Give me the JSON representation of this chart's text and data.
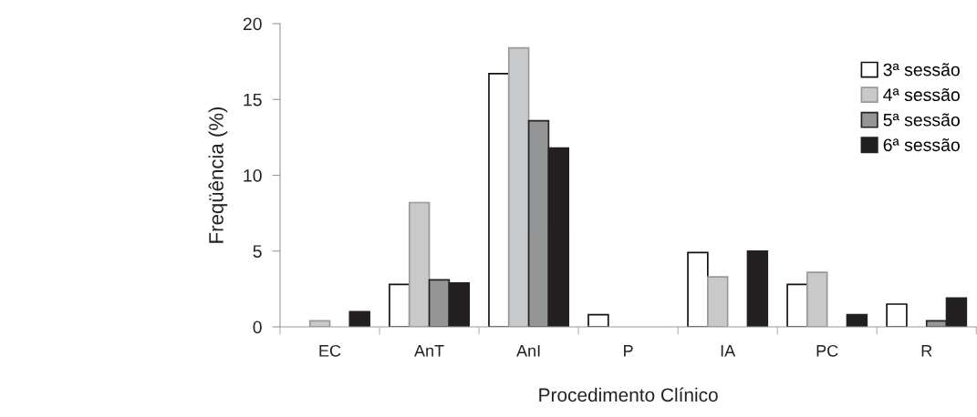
{
  "chart_data": {
    "type": "bar",
    "xlabel": "Procedimento Clínico",
    "ylabel": "Freqüência (%)",
    "categories": [
      "EC",
      "AnT",
      "AnI",
      "P",
      "IA",
      "PC",
      "R"
    ],
    "series": [
      {
        "name": "3ª sessão",
        "color": "#ffffff",
        "values": [
          null,
          2.8,
          16.7,
          0.8,
          4.9,
          2.8,
          1.5
        ]
      },
      {
        "name": "4ª sessão",
        "color": "#c8c9cb",
        "values": [
          0.4,
          8.2,
          18.4,
          null,
          3.3,
          3.6,
          null
        ]
      },
      {
        "name": "5ª sessão",
        "color": "#939597",
        "values": [
          null,
          3.1,
          13.6,
          null,
          null,
          null,
          0.4
        ]
      },
      {
        "name": "6ª sessão",
        "color": "#231f20",
        "values": [
          1.0,
          2.9,
          11.8,
          null,
          5.0,
          0.8,
          1.9
        ]
      }
    ],
    "ylim": [
      0,
      20
    ],
    "yticks": [
      0,
      5,
      10,
      15,
      20
    ],
    "grid": false,
    "legend": "right"
  }
}
